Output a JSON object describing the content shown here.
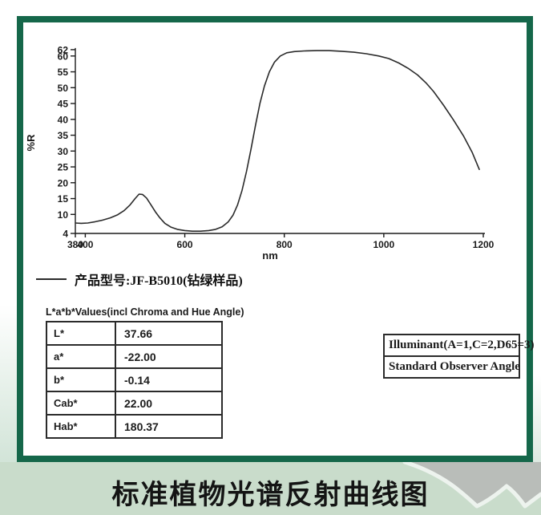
{
  "chart_data": {
    "type": "line",
    "title": "",
    "xlabel": "nm",
    "ylabel": "%R",
    "xlim": [
      380,
      1200
    ],
    "ylim": [
      4,
      62
    ],
    "x_ticks": [
      380,
      400,
      600,
      800,
      1000,
      1200
    ],
    "y_ticks": [
      4,
      10,
      15,
      20,
      25,
      30,
      35,
      40,
      45,
      50,
      55,
      60,
      62
    ],
    "grid": false,
    "legend_position": "below-left",
    "series": [
      {
        "name": "产品型号:JF-B5010(钻绿样品)",
        "color": "#2a2a2a",
        "points": [
          [
            380,
            7.3
          ],
          [
            392,
            7.2
          ],
          [
            405,
            7.3
          ],
          [
            420,
            7.7
          ],
          [
            435,
            8.2
          ],
          [
            450,
            8.9
          ],
          [
            465,
            9.9
          ],
          [
            478,
            11.2
          ],
          [
            490,
            13.0
          ],
          [
            500,
            15.0
          ],
          [
            508,
            16.4
          ],
          [
            515,
            16.3
          ],
          [
            523,
            15.2
          ],
          [
            532,
            13.0
          ],
          [
            541,
            10.8
          ],
          [
            550,
            8.9
          ],
          [
            560,
            7.2
          ],
          [
            572,
            6.0
          ],
          [
            585,
            5.3
          ],
          [
            600,
            4.9
          ],
          [
            615,
            4.7
          ],
          [
            632,
            4.7
          ],
          [
            648,
            4.9
          ],
          [
            662,
            5.3
          ],
          [
            675,
            6.1
          ],
          [
            687,
            7.6
          ],
          [
            697,
            9.8
          ],
          [
            706,
            13.0
          ],
          [
            715,
            17.5
          ],
          [
            724,
            23.5
          ],
          [
            733,
            30.5
          ],
          [
            742,
            38.0
          ],
          [
            751,
            45.0
          ],
          [
            760,
            50.5
          ],
          [
            770,
            55.0
          ],
          [
            780,
            58.0
          ],
          [
            792,
            60.0
          ],
          [
            805,
            61.0
          ],
          [
            820,
            61.4
          ],
          [
            840,
            61.6
          ],
          [
            865,
            61.7
          ],
          [
            890,
            61.7
          ],
          [
            915,
            61.5
          ],
          [
            940,
            61.2
          ],
          [
            965,
            60.7
          ],
          [
            990,
            60.0
          ],
          [
            1010,
            59.2
          ],
          [
            1030,
            57.8
          ],
          [
            1050,
            56.0
          ],
          [
            1068,
            54.0
          ],
          [
            1085,
            51.5
          ],
          [
            1100,
            48.8
          ],
          [
            1120,
            44.5
          ],
          [
            1140,
            39.8
          ],
          [
            1160,
            34.8
          ],
          [
            1178,
            29.5
          ],
          [
            1192,
            24.2
          ]
        ]
      }
    ]
  },
  "lab_table": {
    "title": "L*a*b*Values(incl Chroma and Hue Angle)",
    "rows": [
      {
        "label": "L*",
        "value": "37.66"
      },
      {
        "label": "a*",
        "value": "-22.00"
      },
      {
        "label": "b*",
        "value": "-0.14"
      },
      {
        "label": "Cab*",
        "value": "22.00"
      },
      {
        "label": "Hab*",
        "value": "180.37"
      }
    ]
  },
  "info_box": {
    "line1": "Illuminant(A=1,C=2,D65=3)",
    "line2": "Standard Observer Angle"
  },
  "footer": {
    "caption": "标准植物光谱反射曲线图"
  },
  "colors": {
    "panel_border": "#15674a",
    "curve": "#2a2a2a",
    "footer_green": "#c9dccb",
    "footer_gray": "#b9bdb9",
    "ridge_white": "#edf3ee"
  }
}
